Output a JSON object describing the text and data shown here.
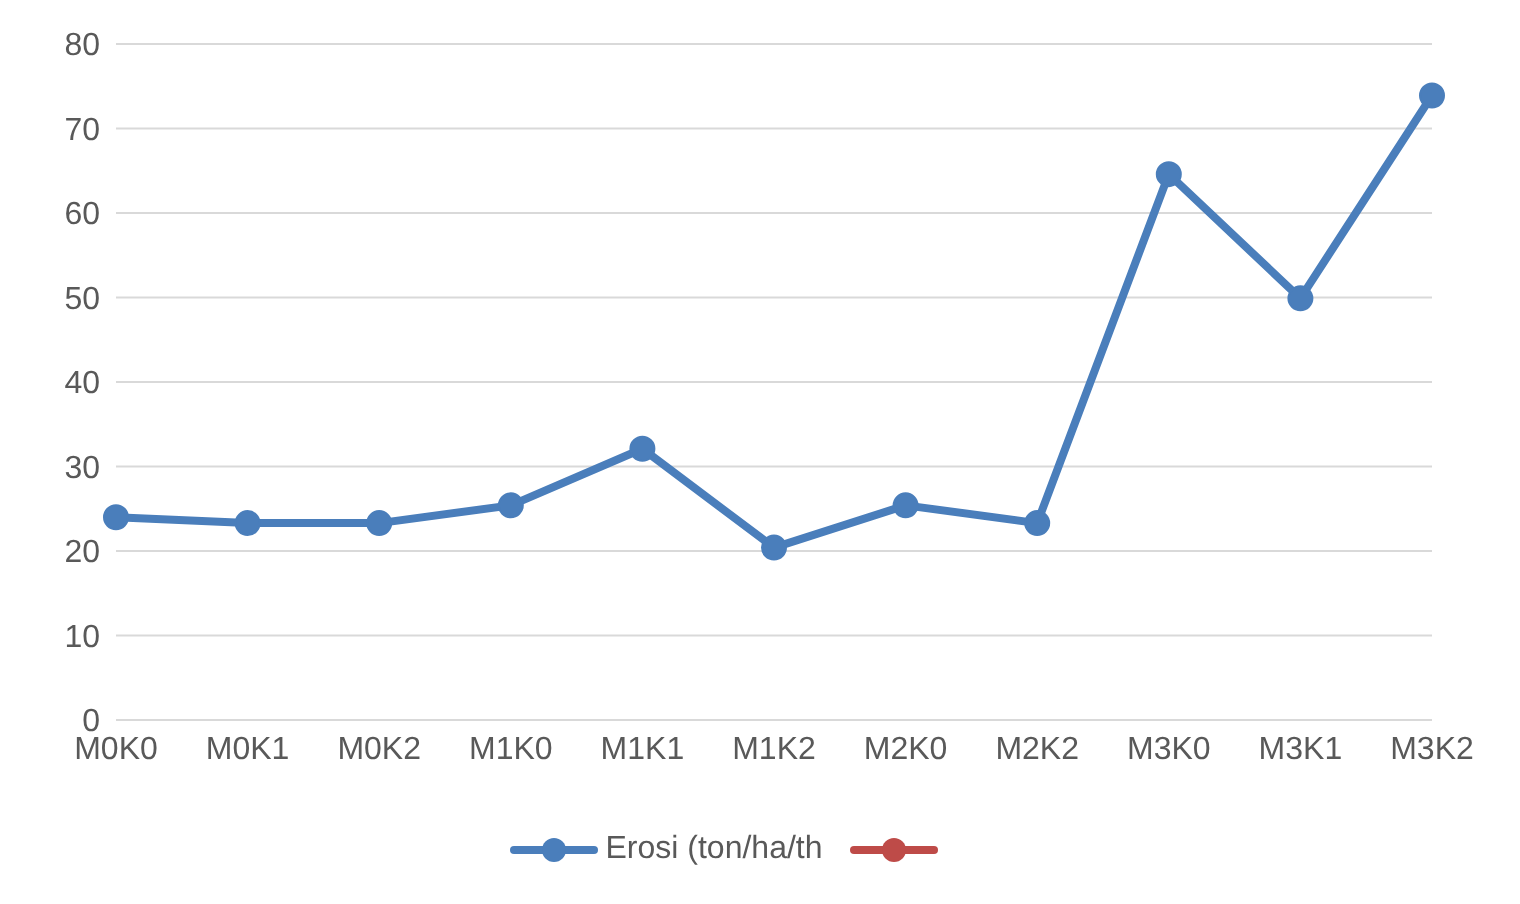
{
  "chart_data": {
    "type": "line",
    "categories": [
      "M0K0",
      "M0K1",
      "M0K2",
      "M1K0",
      "M1K1",
      "M1K2",
      "M2K0",
      "M2K2",
      "M3K0",
      "M3K1",
      "M3K2"
    ],
    "series": [
      {
        "name": "Erosi (ton/ha/th",
        "color": "#4a7ebb",
        "values": [
          24.0,
          23.3,
          23.3,
          25.4,
          32.1,
          20.4,
          25.4,
          23.3,
          64.6,
          49.9,
          73.9
        ]
      },
      {
        "color": "#be4b48",
        "values": [
          null,
          null,
          null,
          null,
          null,
          null,
          null,
          null,
          null,
          null,
          null
        ]
      }
    ],
    "ylim": [
      0,
      80
    ],
    "yticks": [
      0,
      10,
      20,
      30,
      40,
      50,
      60,
      70,
      80
    ],
    "grid": "y",
    "legend": "bottom",
    "marker": "circle",
    "line_style": "solid"
  }
}
